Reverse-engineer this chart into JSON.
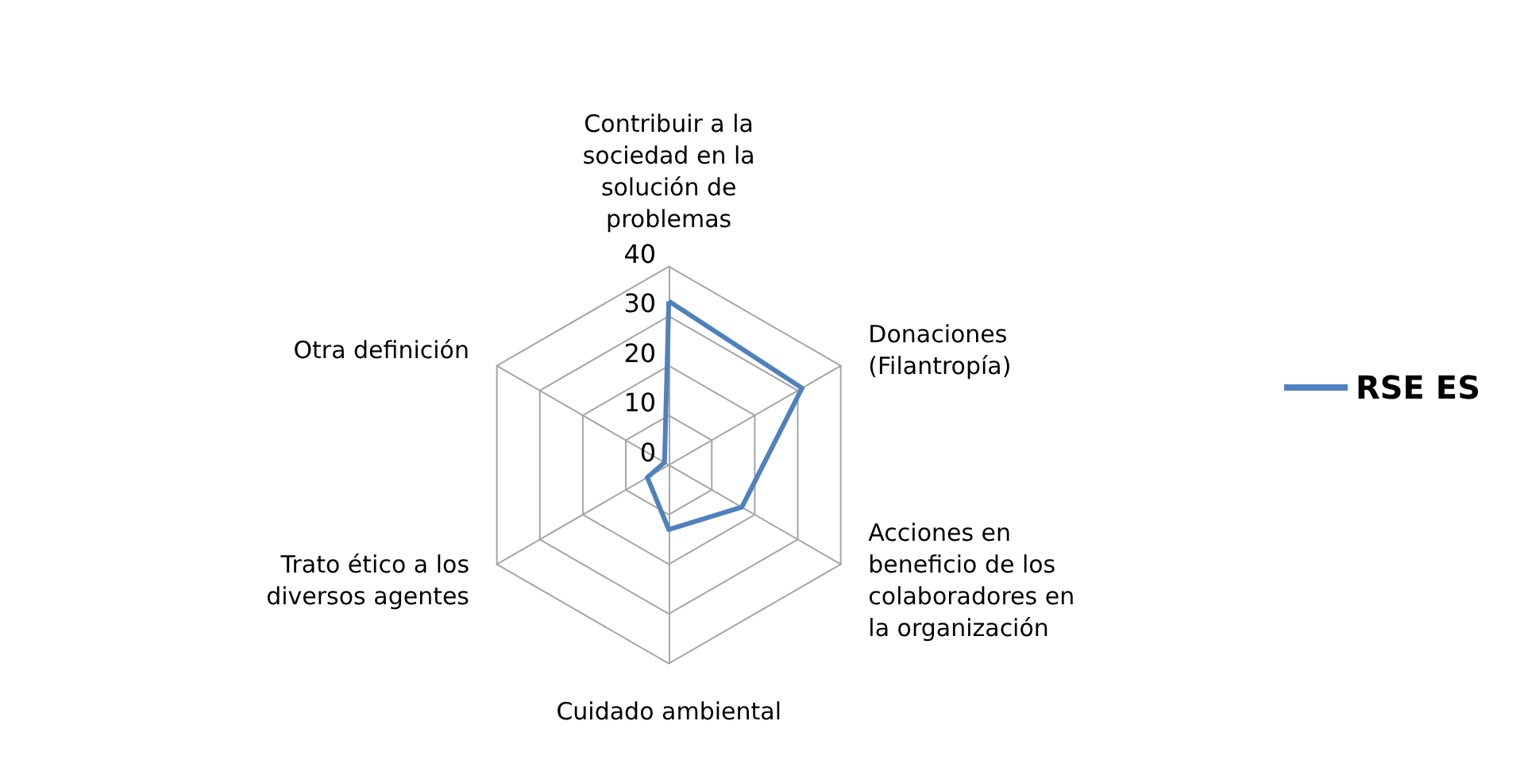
{
  "chart_data": {
    "type": "radar",
    "categories": [
      "Contribuir a la sociedad en la solución de problemas",
      "Donaciones (Filantropía)",
      "Acciones en beneficio de los colaboradores en la organización",
      "Cuidado ambiental",
      "Trato ético a los diversos agentes",
      "Otra definición"
    ],
    "series": [
      {
        "name": "RSE ES",
        "color": "#4f81bd",
        "values": [
          33,
          31,
          17,
          13,
          5,
          1
        ]
      }
    ],
    "ylim": [
      0,
      40
    ],
    "yticks": [
      0,
      10,
      20,
      30,
      40
    ],
    "grid": true,
    "legend": "right",
    "marker": "none"
  }
}
